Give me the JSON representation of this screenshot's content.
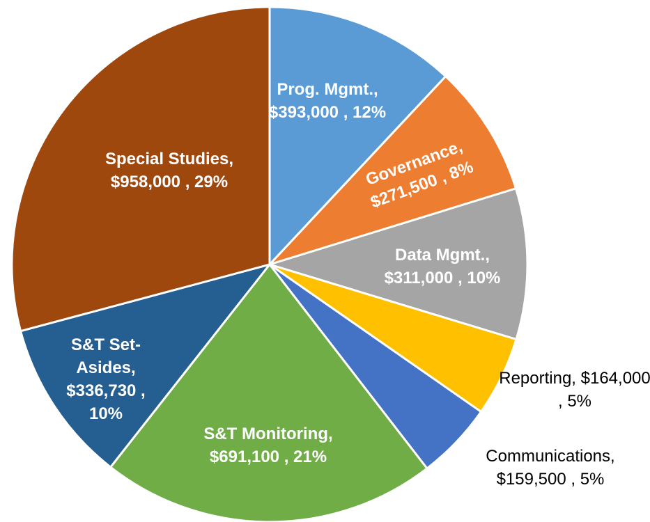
{
  "chart_data": {
    "type": "pie",
    "categories": [
      "Prog. Mgmt.,",
      "Governance,",
      "Data Mgmt.,",
      "Reporting,",
      "Communications,",
      "S&T Monitoring,",
      "S&T Set-Asides,",
      "Special Studies,"
    ],
    "values": [
      393000,
      271500,
      311000,
      164000,
      159500,
      691100,
      336730,
      958000
    ],
    "value_labels": [
      "$393,000 , 12%",
      "$271,500 , 8%",
      "$311,000 , 10%",
      "$164,000 , 5%",
      "$159,500 , 5%",
      "$691,100 , 21%",
      "$336,730 , 10%",
      "$958,000 , 29%"
    ],
    "colors": [
      "#5b9bd5",
      "#ed7d31",
      "#a5a5a5",
      "#ffc000",
      "#4472c4",
      "#70ad47",
      "#255e91",
      "#9e480e"
    ]
  }
}
